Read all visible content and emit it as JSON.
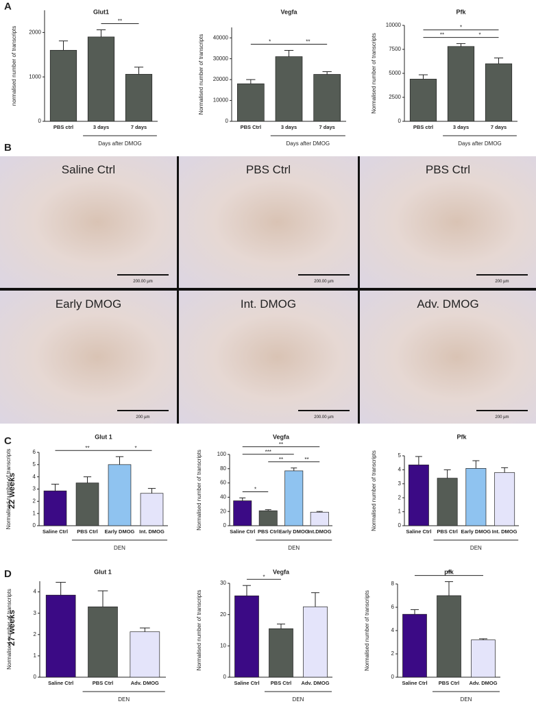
{
  "panel_labels": [
    "A",
    "B",
    "C",
    "D"
  ],
  "row_labels": [
    "22 weeks",
    "27 weeks"
  ],
  "micrographs": [
    {
      "label": "Saline Ctrl",
      "scale_bar": "200.00 µm"
    },
    {
      "label": "PBS Ctrl",
      "scale_bar": "200.00 µm"
    },
    {
      "label": "PBS Ctrl",
      "scale_bar": "200 µm"
    },
    {
      "label": "Early DMOG",
      "scale_bar": "200 µm"
    },
    {
      "label": "Int. DMOG",
      "scale_bar": "200.00 µm"
    },
    {
      "label": "Adv. DMOG",
      "scale_bar": "200 µm"
    }
  ],
  "chart_data": [
    {
      "type": "bar",
      "title": "Glut1",
      "ylabel": "normalised number of transcripts",
      "categories": [
        "PBS ctrl",
        "3 days",
        "7 days"
      ],
      "values": [
        1600,
        1900,
        1060
      ],
      "errors": [
        210,
        160,
        160
      ],
      "color": "#555c55",
      "ylim": [
        0,
        2500
      ],
      "yticks": [
        0,
        1000,
        2000
      ],
      "xlabel": "Days after DMOG",
      "xlabel_span": [
        "3 days",
        "7 days"
      ],
      "significance": [
        {
          "pair": [
            "3 days",
            "7 days"
          ],
          "label": "**"
        }
      ]
    },
    {
      "type": "bar",
      "title": "Vegfa",
      "ylabel": "Normalised number of transcripts",
      "categories": [
        "PBS Ctrl",
        "3 days",
        "7 days"
      ],
      "values": [
        18000,
        31000,
        22500
      ],
      "errors": [
        2000,
        3000,
        1300
      ],
      "color": "#555c55",
      "ylim": [
        0,
        45000
      ],
      "yticks": [
        0,
        10000,
        20000,
        30000,
        40000
      ],
      "xlabel": "Days after DMOG",
      "xlabel_span": [
        "3 days",
        "7 days"
      ],
      "significance": [
        {
          "pair": [
            "PBS Ctrl",
            "3 days"
          ],
          "label": "*"
        },
        {
          "pair": [
            "3 days",
            "7 days"
          ],
          "label": "**"
        }
      ]
    },
    {
      "type": "bar",
      "title": "Pfk",
      "ylabel": "Normalised number of transcripts",
      "categories": [
        "PBS ctrl",
        "3 days",
        "7 days"
      ],
      "values": [
        4400,
        7800,
        6000
      ],
      "errors": [
        450,
        300,
        600
      ],
      "color": "#555c55",
      "ylim": [
        0,
        10000
      ],
      "yticks": [
        0,
        2500,
        5000,
        7500,
        10000
      ],
      "xlabel": "Days after DMOG",
      "xlabel_span": [
        "3 days",
        "7 days"
      ],
      "significance": [
        {
          "pair": [
            "PBS ctrl",
            "3 days"
          ],
          "label": "**"
        },
        {
          "pair": [
            "3 days",
            "7 days"
          ],
          "label": "*"
        },
        {
          "pair": [
            "PBS ctrl",
            "7 days"
          ],
          "label": "*"
        }
      ]
    },
    {
      "type": "bar",
      "title": "Glut 1",
      "ylabel": "Normalised number of transcripts",
      "categories": [
        "Saline Ctrl",
        "PBS Ctrl",
        "Early DMOG",
        "Int. DMOG"
      ],
      "values": [
        2.85,
        3.5,
        5.0,
        2.65
      ],
      "errors": [
        0.55,
        0.5,
        0.65,
        0.4
      ],
      "colors": [
        "#3b0a85",
        "#555c55",
        "#8fc3f0",
        "#e4e4fa"
      ],
      "ylim": [
        0,
        6
      ],
      "yticks": [
        0,
        1,
        2,
        3,
        4,
        5,
        6
      ],
      "xlabel": "DEN",
      "xlabel_span": [
        "PBS Ctrl",
        "Int. DMOG"
      ],
      "significance": [
        {
          "pair": [
            "Early DMOG",
            "Int. DMOG"
          ],
          "label": "*"
        },
        {
          "pair": [
            "Saline Ctrl",
            "Early DMOG"
          ],
          "label": "**"
        }
      ]
    },
    {
      "type": "bar",
      "title": "Vegfa",
      "ylabel": "Normalised number of transcripts",
      "categories": [
        "Saline Ctrl",
        "PBS Ctrl",
        "Early DMOG",
        "Int.DMOG"
      ],
      "values": [
        35,
        21,
        77,
        19
      ],
      "errors": [
        4,
        1.5,
        4,
        1
      ],
      "colors": [
        "#3b0a85",
        "#555c55",
        "#8fc3f0",
        "#e4e4fa"
      ],
      "ylim": [
        0,
        100
      ],
      "yticks": [
        0,
        20,
        40,
        60,
        80,
        100
      ],
      "xlabel": "DEN",
      "xlabel_span": [
        "PBS Ctrl",
        "Int.DMOG"
      ],
      "significance": [
        {
          "pair": [
            "Saline Ctrl",
            "PBS Ctrl"
          ],
          "label": "*"
        },
        {
          "pair": [
            "PBS Ctrl",
            "Early DMOG"
          ],
          "label": "**"
        },
        {
          "pair": [
            "Early DMOG",
            "Int.DMOG"
          ],
          "label": "**"
        },
        {
          "pair": [
            "Saline Ctrl",
            "Early DMOG"
          ],
          "label": "***"
        },
        {
          "pair": [
            "Saline Ctrl",
            "Int.DMOG"
          ],
          "label": "**"
        }
      ]
    },
    {
      "type": "bar",
      "title": "Pfk",
      "ylabel": "Normalised number of transcripts",
      "categories": [
        "Saline Ctrl",
        "PBS Ctrl",
        "Early DMOG",
        "Int. DMOG"
      ],
      "values": [
        4.35,
        3.4,
        4.1,
        3.8
      ],
      "errors": [
        0.6,
        0.6,
        0.55,
        0.35
      ],
      "colors": [
        "#3b0a85",
        "#555c55",
        "#8fc3f0",
        "#e4e4fa"
      ],
      "ylim": [
        0,
        5
      ],
      "yticks": [
        0,
        1,
        2,
        3,
        4,
        5
      ],
      "xlabel": "DEN",
      "xlabel_span": [
        "PBS Ctrl",
        "Int. DMOG"
      ]
    },
    {
      "type": "bar",
      "title": "Glut 1",
      "ylabel": "Normalised number of transcripts",
      "categories": [
        "Saline Ctrl",
        "PBS Ctrl",
        "Adv. DMOG"
      ],
      "values": [
        3.85,
        3.3,
        2.13
      ],
      "errors": [
        0.6,
        0.75,
        0.18
      ],
      "colors": [
        "#3b0a85",
        "#555c55",
        "#e4e4fa"
      ],
      "ylim": [
        0,
        4.5
      ],
      "yticks": [
        0,
        1,
        2,
        3,
        4
      ],
      "xlabel": "DEN",
      "xlabel_span": [
        "PBS Ctrl",
        "Adv. DMOG"
      ]
    },
    {
      "type": "bar",
      "title": "Vegfa",
      "ylabel": "Normalised number of transcripts",
      "categories": [
        "Saline Ctrl",
        "PBS Ctrl",
        "Adv. DMOG"
      ],
      "values": [
        26,
        15.5,
        22.5
      ],
      "errors": [
        3.3,
        1.5,
        4.5
      ],
      "colors": [
        "#3b0a85",
        "#555c55",
        "#e4e4fa"
      ],
      "ylim": [
        0,
        30
      ],
      "yticks": [
        0,
        10,
        20,
        30
      ],
      "xlabel": "DEN",
      "xlabel_span": [
        "PBS Ctrl",
        "Adv. DMOG"
      ],
      "significance": [
        {
          "pair": [
            "Saline Ctrl",
            "PBS Ctrl"
          ],
          "label": "*"
        }
      ]
    },
    {
      "type": "bar",
      "title": "pfk",
      "ylabel": "Normalised number of transcripts",
      "categories": [
        "Saline Ctrl",
        "PBS Ctrl",
        "Adv. DMOG"
      ],
      "values": [
        5.4,
        7.0,
        3.2
      ],
      "errors": [
        0.4,
        1.2,
        0.1
      ],
      "colors": [
        "#3b0a85",
        "#555c55",
        "#e4e4fa"
      ],
      "ylim": [
        0,
        8
      ],
      "yticks": [
        0,
        2,
        4,
        6,
        8
      ],
      "xlabel": "DEN",
      "xlabel_span": [
        "PBS Ctrl",
        "Adv. DMOG"
      ],
      "significance": [
        {
          "pair": [
            "Saline Ctrl",
            "Adv. DMOG"
          ],
          "label": "**"
        }
      ]
    }
  ]
}
